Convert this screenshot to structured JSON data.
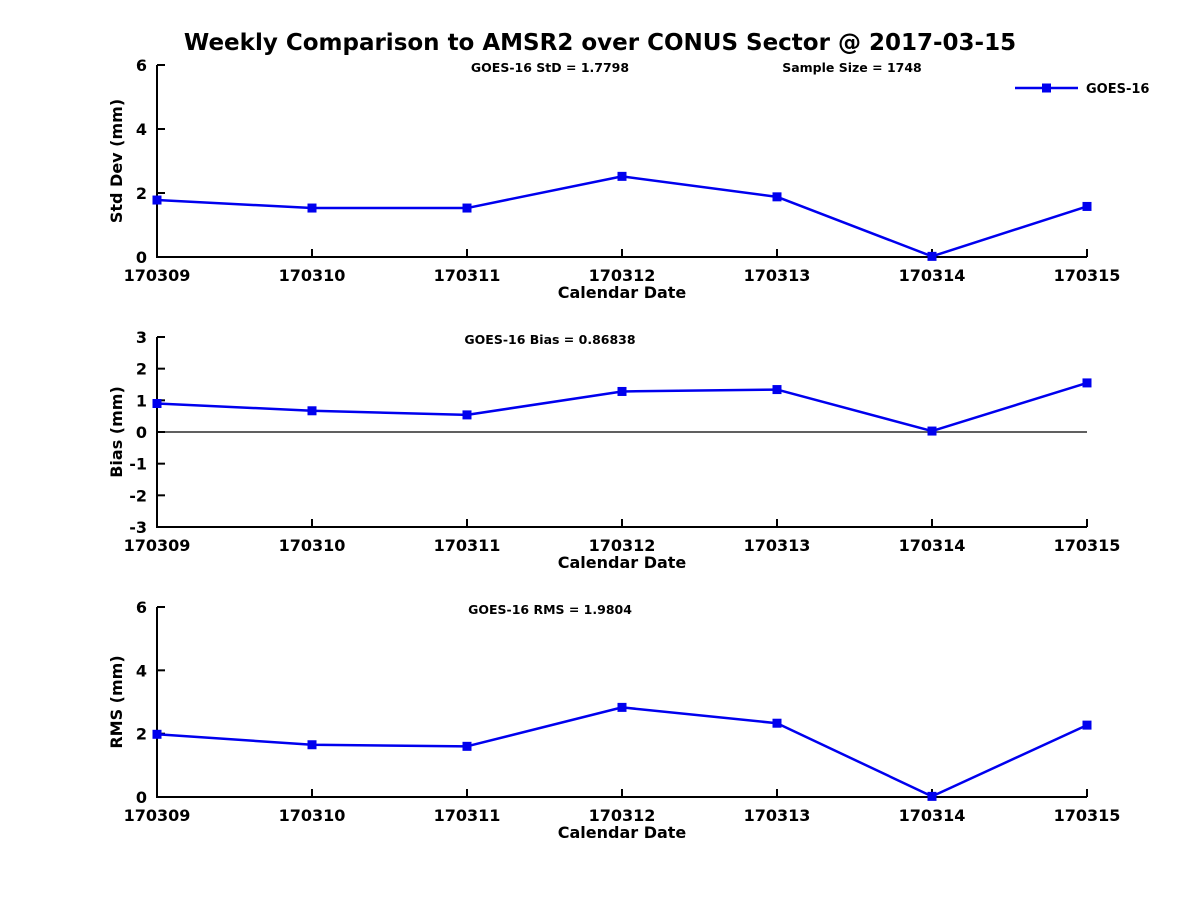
{
  "title": "Weekly Comparison to AMSR2 over CONUS Sector @ 2017-03-15",
  "colors": {
    "line": "#0000EE",
    "axis": "#000000",
    "text": "#000000",
    "background": "#FFFFFF"
  },
  "legend": {
    "label": "GOES-16",
    "position": "top-right",
    "marker": "square"
  },
  "categories": [
    "170309",
    "170310",
    "170311",
    "170312",
    "170313",
    "170314",
    "170315"
  ],
  "chart_data": [
    {
      "type": "line",
      "id": "std-dev",
      "stat_label": "GOES-16 StD = 1.7798",
      "sample_label": "Sample Size = 1748",
      "xlabel": "Calendar Date",
      "ylabel": "Std Dev (mm)",
      "categories": [
        "170309",
        "170310",
        "170311",
        "170312",
        "170313",
        "170314",
        "170315"
      ],
      "series": [
        {
          "name": "GOES-16",
          "values": [
            1.78,
            1.53,
            1.53,
            2.52,
            1.88,
            0.02,
            1.58
          ]
        }
      ],
      "ylim": [
        0,
        6
      ],
      "yticks": [
        0,
        2,
        4,
        6
      ],
      "zero_line": false,
      "legend_visible": true,
      "grid": false
    },
    {
      "type": "line",
      "id": "bias",
      "stat_label": "GOES-16 Bias  = 0.86838",
      "sample_label": "",
      "xlabel": "Calendar Date",
      "ylabel": "Bias (mm)",
      "categories": [
        "170309",
        "170310",
        "170311",
        "170312",
        "170313",
        "170314",
        "170315"
      ],
      "series": [
        {
          "name": "GOES-16",
          "values": [
            0.9,
            0.67,
            0.54,
            1.28,
            1.34,
            0.03,
            1.55
          ]
        }
      ],
      "ylim": [
        -3,
        3
      ],
      "yticks": [
        -3,
        -2,
        -1,
        0,
        1,
        2,
        3
      ],
      "zero_line": true,
      "legend_visible": false,
      "grid": false
    },
    {
      "type": "line",
      "id": "rms",
      "stat_label": "GOES-16 RMS = 1.9804",
      "sample_label": "",
      "xlabel": "Calendar Date",
      "ylabel": "RMS (mm)",
      "categories": [
        "170309",
        "170310",
        "170311",
        "170312",
        "170313",
        "170314",
        "170315"
      ],
      "series": [
        {
          "name": "GOES-16",
          "values": [
            1.98,
            1.65,
            1.6,
            2.83,
            2.33,
            0.02,
            2.27
          ]
        }
      ],
      "ylim": [
        0,
        6
      ],
      "yticks": [
        0,
        2,
        4,
        6
      ],
      "zero_line": false,
      "legend_visible": false,
      "grid": false
    }
  ]
}
